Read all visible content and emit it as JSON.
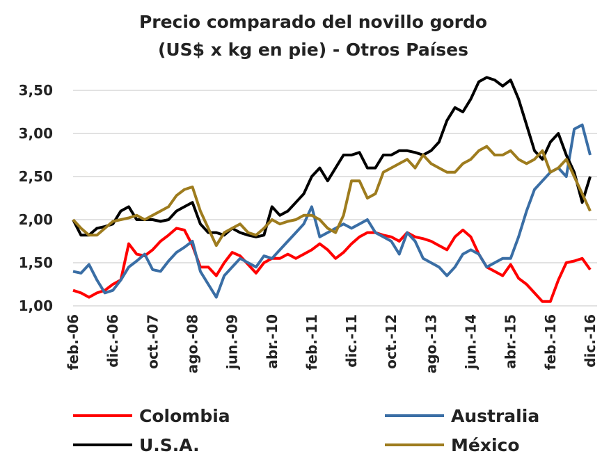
{
  "chart_data": {
    "type": "line",
    "title": "Precio comparado del novillo gordo",
    "subtitle": "(US$ x kg en pie) - Otros Países",
    "categories": [
      "feb.-06",
      null,
      null,
      null,
      null,
      "dic.-06",
      null,
      null,
      null,
      null,
      "oct.-07",
      null,
      null,
      null,
      null,
      "ago.-08",
      null,
      null,
      null,
      null,
      "jun.-09",
      null,
      null,
      null,
      null,
      "abr.-10",
      null,
      null,
      null,
      null,
      "feb.-11",
      null,
      null,
      null,
      null,
      "dic.-11",
      null,
      null,
      null,
      null,
      "oct.-12",
      null,
      null,
      null,
      null,
      "ago.-13",
      null,
      null,
      null,
      null,
      "jun.-14",
      null,
      null,
      null,
      null,
      "abr.-15",
      null,
      null,
      null,
      null,
      "feb.-16",
      null,
      null,
      null,
      null,
      "dic.-16"
    ],
    "series": [
      {
        "name": "Colombia",
        "color": "#ff0000",
        "values": [
          1.18,
          1.15,
          1.1,
          1.15,
          1.18,
          1.25,
          1.3,
          1.72,
          1.6,
          1.58,
          1.65,
          1.75,
          1.82,
          1.9,
          1.88,
          1.7,
          1.45,
          1.45,
          1.35,
          1.5,
          1.62,
          1.58,
          1.48,
          1.38,
          1.5,
          1.55,
          1.55,
          1.6,
          1.55,
          1.6,
          1.65,
          1.72,
          1.65,
          1.55,
          1.62,
          1.72,
          1.8,
          1.85,
          1.85,
          1.82,
          1.8,
          1.75,
          1.85,
          1.8,
          1.78,
          1.75,
          1.7,
          1.65,
          1.8,
          1.88,
          1.8,
          1.6,
          1.45,
          1.4,
          1.35,
          1.48,
          1.32,
          1.25,
          1.15,
          1.05,
          1.05,
          1.3,
          1.5,
          1.52,
          1.55,
          1.42
        ]
      },
      {
        "name": "Australia",
        "color": "#3a6ea5",
        "values": [
          1.4,
          1.38,
          1.48,
          1.3,
          1.15,
          1.18,
          1.3,
          1.45,
          1.52,
          1.6,
          1.42,
          1.4,
          1.52,
          1.62,
          1.68,
          1.75,
          1.4,
          1.25,
          1.1,
          1.35,
          1.45,
          1.55,
          1.5,
          1.45,
          1.58,
          1.55,
          1.65,
          1.75,
          1.85,
          1.95,
          2.15,
          1.8,
          1.85,
          1.9,
          1.95,
          1.9,
          1.95,
          2.0,
          1.85,
          1.8,
          1.75,
          1.6,
          1.85,
          1.75,
          1.55,
          1.5,
          1.45,
          1.35,
          1.45,
          1.6,
          1.65,
          1.6,
          1.45,
          1.5,
          1.55,
          1.55,
          1.8,
          2.1,
          2.35,
          2.45,
          2.55,
          2.6,
          2.5,
          3.05,
          3.1,
          2.75
        ]
      },
      {
        "name": "U.S.A.",
        "color": "#000000",
        "values": [
          2.0,
          1.82,
          1.82,
          1.9,
          1.92,
          1.95,
          2.1,
          2.15,
          2.0,
          2.0,
          2.0,
          1.98,
          2.0,
          2.1,
          2.15,
          2.2,
          1.95,
          1.85,
          1.85,
          1.82,
          1.9,
          1.85,
          1.82,
          1.8,
          1.82,
          2.15,
          2.05,
          2.1,
          2.2,
          2.3,
          2.5,
          2.6,
          2.45,
          2.6,
          2.75,
          2.75,
          2.78,
          2.6,
          2.6,
          2.75,
          2.75,
          2.8,
          2.8,
          2.78,
          2.75,
          2.8,
          2.9,
          3.15,
          3.3,
          3.25,
          3.4,
          3.6,
          3.65,
          3.62,
          3.55,
          3.62,
          3.4,
          3.1,
          2.8,
          2.7,
          2.9,
          3.0,
          2.75,
          2.55,
          2.2,
          2.5
        ]
      },
      {
        "name": "México",
        "color": "#9e7c1e",
        "values": [
          2.0,
          1.9,
          1.82,
          1.82,
          1.9,
          1.98,
          2.0,
          2.02,
          2.05,
          2.0,
          2.05,
          2.1,
          2.15,
          2.28,
          2.35,
          2.38,
          2.1,
          1.9,
          1.7,
          1.85,
          1.9,
          1.95,
          1.85,
          1.82,
          1.9,
          2.0,
          1.95,
          1.98,
          2.0,
          2.05,
          2.05,
          2.0,
          1.9,
          1.85,
          2.05,
          2.45,
          2.45,
          2.25,
          2.3,
          2.55,
          2.6,
          2.65,
          2.7,
          2.6,
          2.75,
          2.65,
          2.6,
          2.55,
          2.55,
          2.65,
          2.7,
          2.8,
          2.85,
          2.75,
          2.75,
          2.8,
          2.7,
          2.65,
          2.7,
          2.8,
          2.55,
          2.6,
          2.7,
          2.5,
          2.3,
          2.1
        ]
      }
    ],
    "ylim": [
      1,
      3.75
    ],
    "yticks": [
      {
        "value": 1,
        "label": "1,00"
      },
      {
        "value": 1.5,
        "label": "1,50"
      },
      {
        "value": 2,
        "label": "2,00"
      },
      {
        "value": 2.5,
        "label": "2,50"
      },
      {
        "value": 3,
        "label": "3,00"
      },
      {
        "value": 3.5,
        "label": "3,50"
      }
    ],
    "grid": true,
    "legend": "bottom"
  }
}
